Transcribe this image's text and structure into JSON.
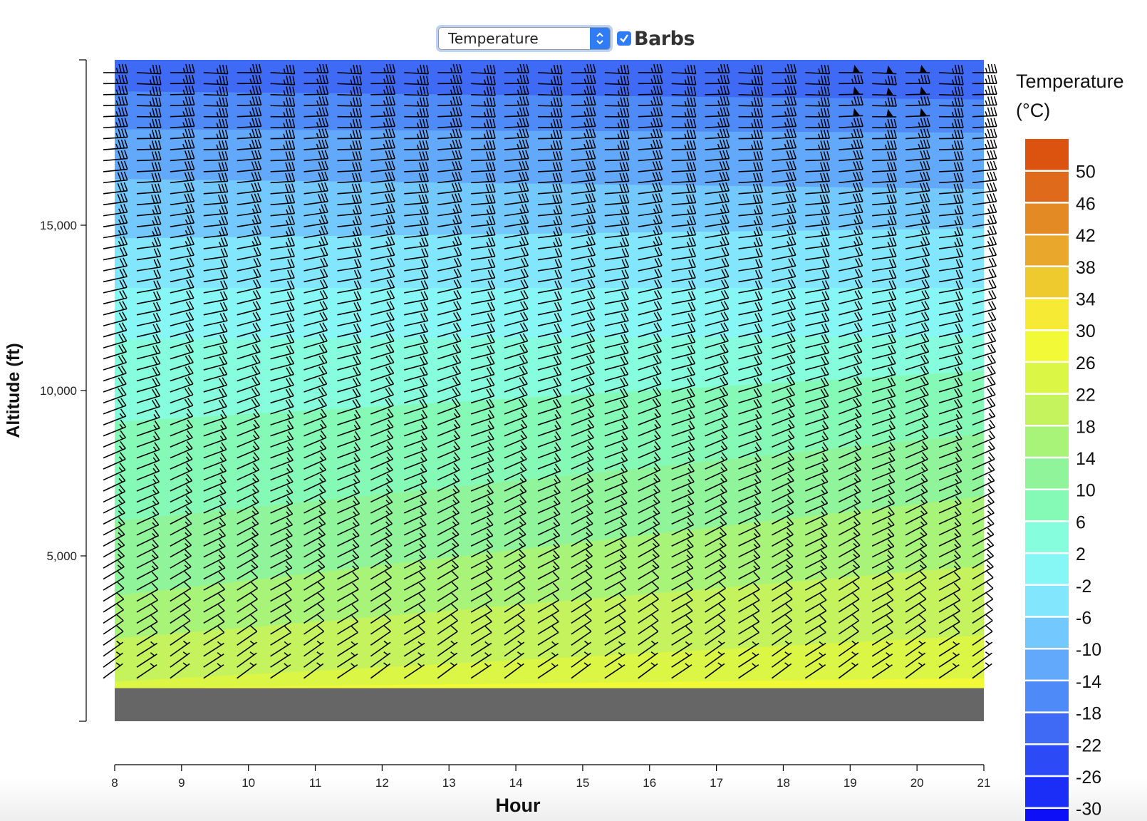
{
  "controls": {
    "variable_select": {
      "value": "Temperature"
    },
    "barbs_checkbox": {
      "label": "Barbs",
      "checked": true
    }
  },
  "chart_data": {
    "type": "heatmap",
    "subtype": "filled-contour time-height cross-section with wind barbs",
    "xlabel": "Hour",
    "ylabel": "Altitude (ft)",
    "xlim": [
      8,
      21
    ],
    "x_ticks": [
      "8",
      "9",
      "10",
      "11",
      "12",
      "13",
      "14",
      "15",
      "16",
      "17",
      "18",
      "19",
      "20",
      "21"
    ],
    "ylim": [
      0,
      20000
    ],
    "y_ticks": [
      {
        "value": 5000,
        "label": "5,000"
      },
      {
        "value": 10000,
        "label": "10,000"
      },
      {
        "value": 15000,
        "label": "15,000"
      }
    ],
    "terrain_top_ft": 1000,
    "grid": false,
    "legend": {
      "title_lines": [
        "Temperature",
        "(°C)"
      ],
      "placement": "right",
      "labels": [
        "50",
        "46",
        "42",
        "38",
        "34",
        "30",
        "26",
        "22",
        "18",
        "14",
        "10",
        "6",
        "2",
        "-2",
        "-6",
        "-10",
        "-14",
        "-18",
        "-22",
        "-26",
        "-30"
      ],
      "colors": [
        "#dc520f",
        "#e06a1c",
        "#e48a24",
        "#e9a72b",
        "#eeca2f",
        "#f7ea34",
        "#f2f936",
        "#dcf645",
        "#c5f35d",
        "#a7f479",
        "#90f59a",
        "#85fab7",
        "#86fedd",
        "#86f7f5",
        "#82e6fd",
        "#73c8fd",
        "#62a9fb",
        "#4f8bf8",
        "#3e6af6",
        "#2c4af6",
        "#1a2ef7",
        "#0d10f6"
      ]
    },
    "temperature_bands": [
      {
        "band": "-26 to -22",
        "left_ft": 20000,
        "right_ft": 20000
      },
      {
        "band": "-22 to -18",
        "left_ft": 19050,
        "right_ft": 18800
      },
      {
        "band": "-18 to -14",
        "left_ft": 17900,
        "right_ft": 17800
      },
      {
        "band": "-14 to -10",
        "left_ft": 16400,
        "right_ft": 16100
      },
      {
        "band": "-10 to -6",
        "left_ft": 14600,
        "right_ft": 14900
      },
      {
        "band": "-6 to -2",
        "left_ft": 13100,
        "right_ft": 13100
      },
      {
        "band": "-2 to 2",
        "left_ft": 11550,
        "right_ft": 11650
      },
      {
        "band": "2 to 6",
        "left_ft": 9050,
        "right_ft": 10600
      },
      {
        "band": "6 to 10",
        "left_ft": 6050,
        "right_ft": 8700
      },
      {
        "band": "10 to 14",
        "left_ft": 3800,
        "right_ft": 6800
      },
      {
        "band": "14 to 18",
        "left_ft": 2500,
        "right_ft": 4700
      },
      {
        "band": "18 to 22",
        "left_ft": 1200,
        "right_ft": 2600
      },
      {
        "band": "22 to 26",
        "left_ft": 1000,
        "right_ft": 1300
      }
    ],
    "barbs": {
      "hours": [
        8,
        8.5,
        9,
        9.5,
        10,
        10.5,
        11,
        11.5,
        12,
        12.5,
        13,
        13.5,
        14,
        14.5,
        15,
        15.5,
        16,
        16.5,
        17,
        17.5,
        18,
        18.5,
        19,
        19.5,
        20,
        20.5,
        21
      ],
      "altitude_step_ft": 333,
      "speed_kt_by_altitude": [
        {
          "ft": 1400,
          "speed_kt": 8
        },
        {
          "ft": 4000,
          "speed_kt": 15
        },
        {
          "ft": 9000,
          "speed_kt": 20
        },
        {
          "ft": 14000,
          "speed_kt": 25
        },
        {
          "ft": 17000,
          "speed_kt": 35
        },
        {
          "ft": 20000,
          "speed_kt": 40
        }
      ],
      "pennant_barbs": [
        {
          "hour": 19.25,
          "ft": 19500
        },
        {
          "hour": 19.25,
          "ft": 19000
        },
        {
          "hour": 19.25,
          "ft": 18300
        },
        {
          "hour": 19.8,
          "ft": 19500
        },
        {
          "hour": 19.8,
          "ft": 19000
        },
        {
          "hour": 19.8,
          "ft": 18300
        }
      ]
    }
  }
}
